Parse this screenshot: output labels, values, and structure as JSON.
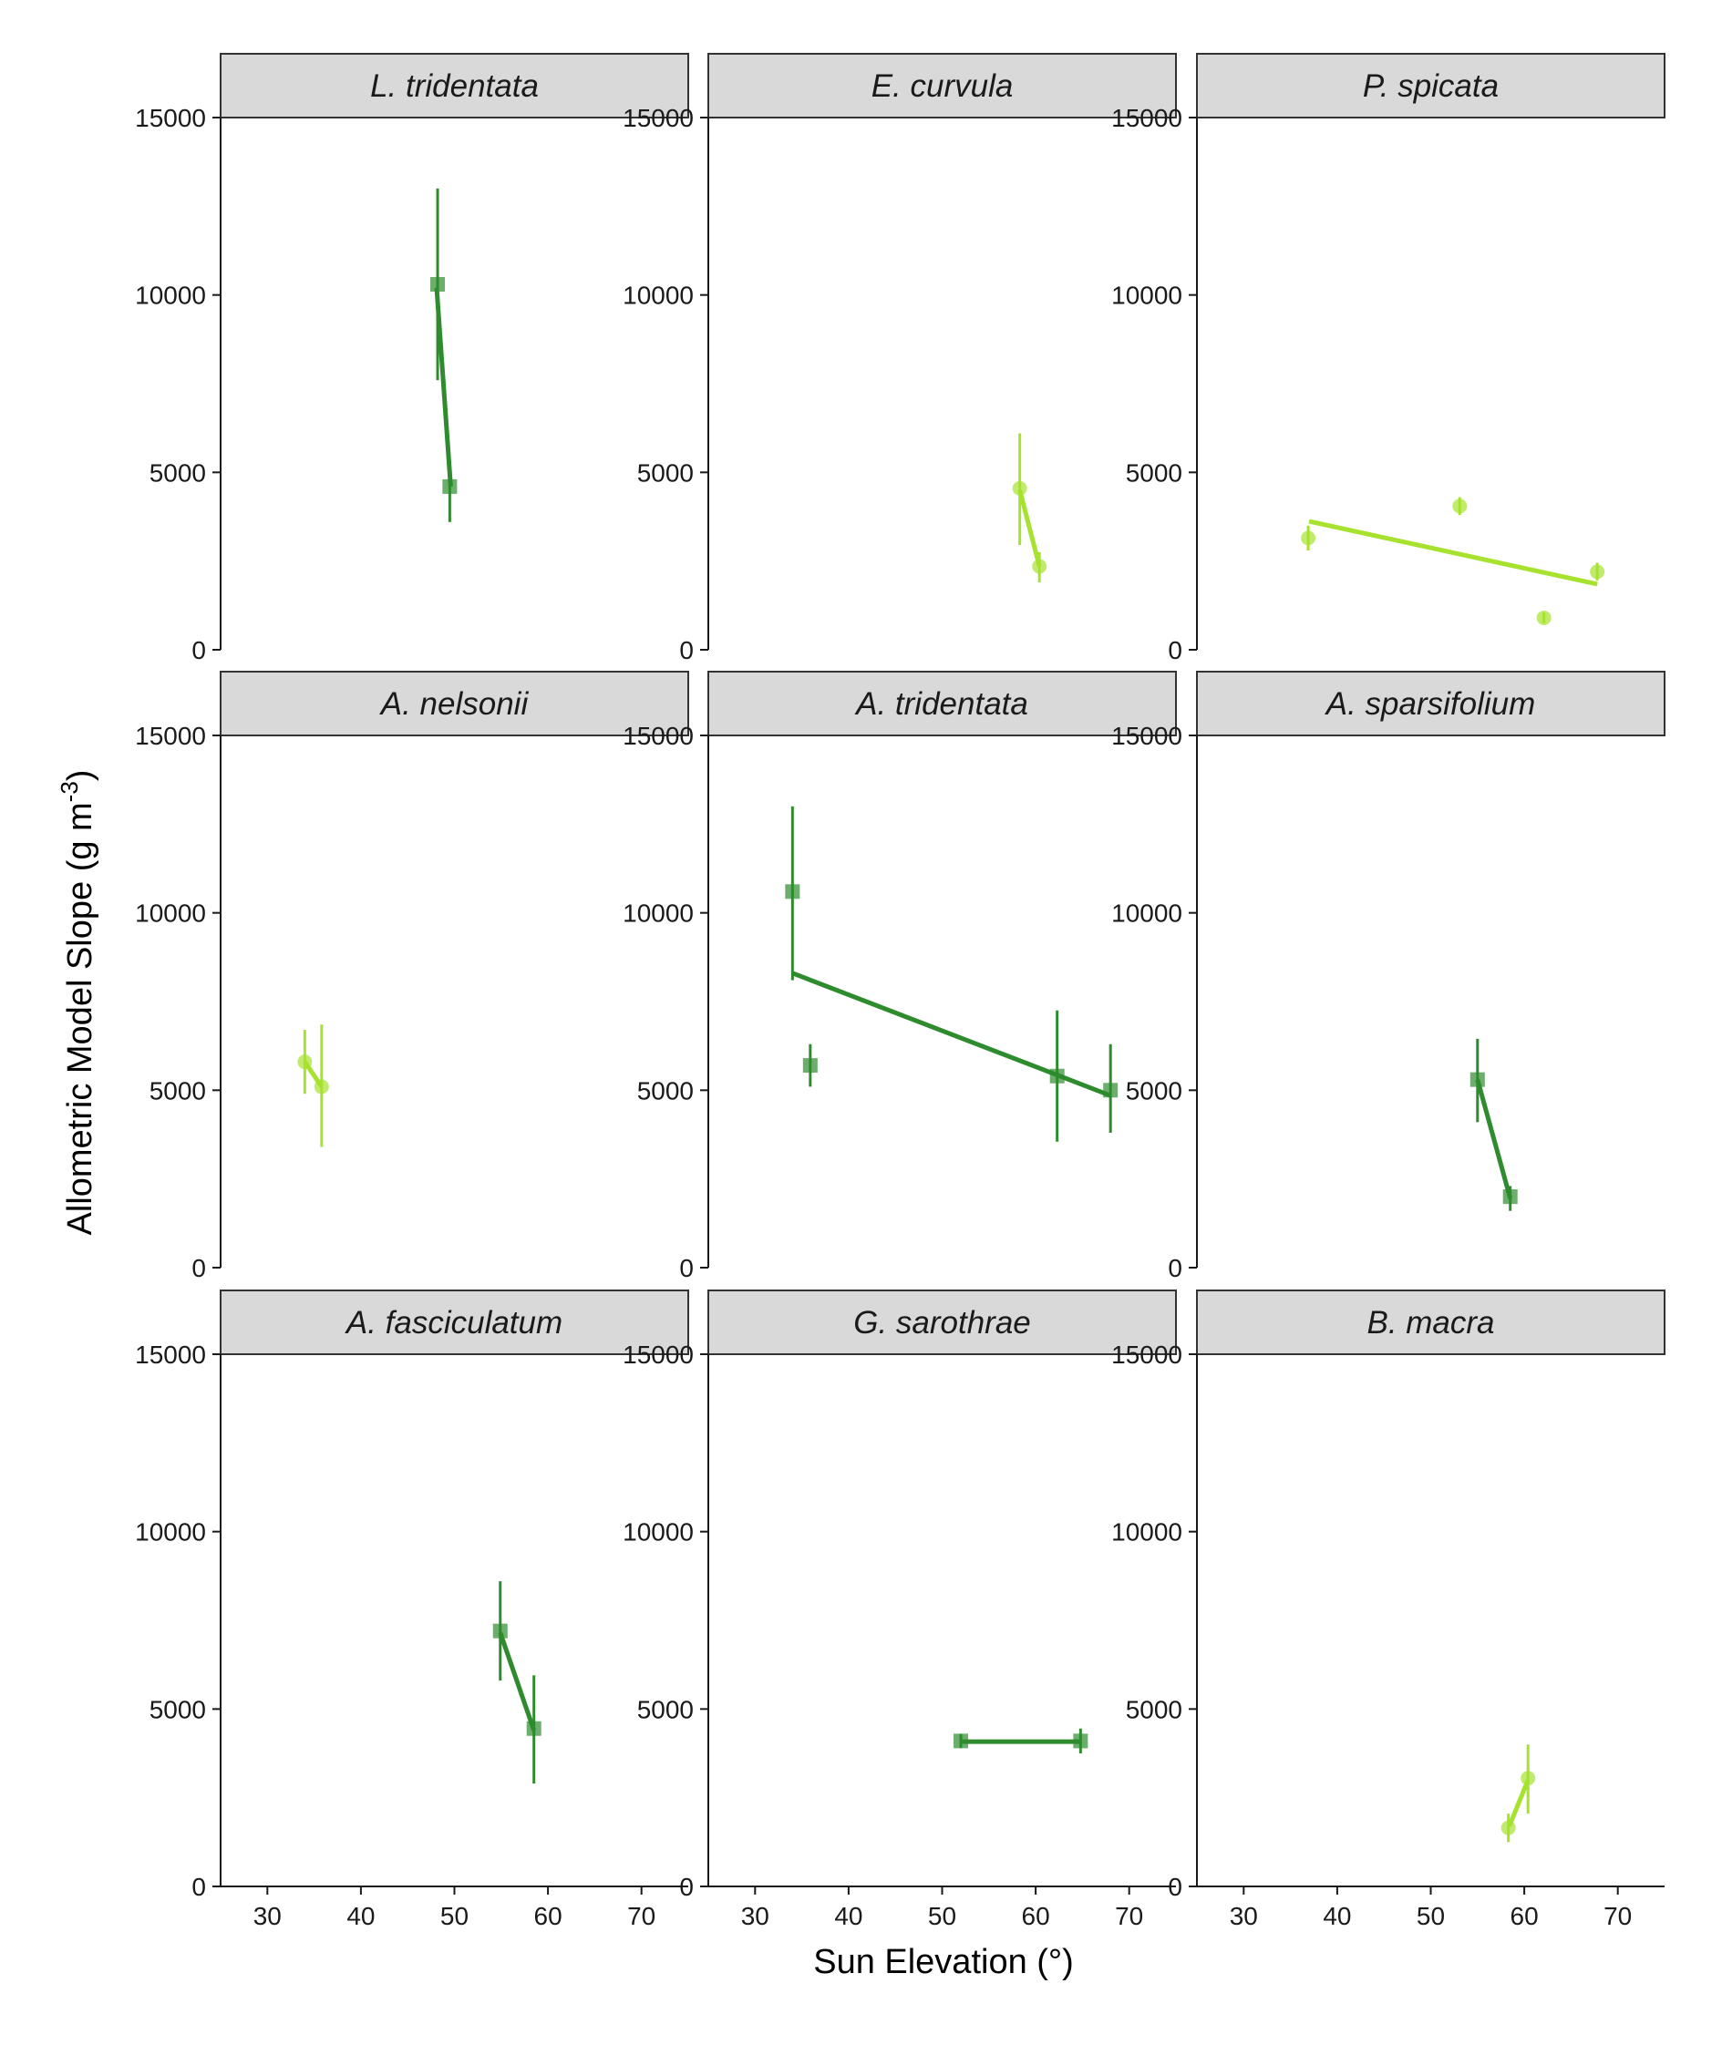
{
  "chart_data": {
    "type": "scatter",
    "xlabel": "Sun Elevation (°)",
    "ylabel": "Allometric Model Slope (g m",
    "ylabel_sup": "-3",
    "ylabel_end": ")",
    "xlim": [
      25,
      75
    ],
    "ylim": [
      0,
      15000
    ],
    "xticks": [
      30,
      40,
      50,
      60,
      70
    ],
    "yticks": [
      0,
      5000,
      10000,
      15000
    ],
    "grid": false,
    "colors": {
      "light_green": "#a6e22e",
      "dark_green": "#2e8b2e"
    },
    "panels": [
      {
        "title": "L. tridentata",
        "color": "dark_green",
        "marker": "square",
        "points": [
          {
            "x": 48.2,
            "y": 10300,
            "err": [
              7600,
              13000
            ]
          },
          {
            "x": 49.5,
            "y": 4600,
            "err": [
              3600,
              4700
            ]
          }
        ],
        "fit": [
          {
            "x": 48.1,
            "y": 10200
          },
          {
            "x": 49.6,
            "y": 4600
          }
        ]
      },
      {
        "title": "E. curvula",
        "color": "light_green",
        "marker": "circle",
        "points": [
          {
            "x": 58.3,
            "y": 4550,
            "err": [
              2950,
              6100
            ]
          },
          {
            "x": 60.4,
            "y": 2350,
            "err": [
              1900,
              2750
            ]
          }
        ],
        "fit": [
          {
            "x": 58.3,
            "y": 4500
          },
          {
            "x": 60.4,
            "y": 2350
          }
        ]
      },
      {
        "title": "P. spicata",
        "color": "light_green",
        "marker": "circle",
        "points": [
          {
            "x": 36.9,
            "y": 3150,
            "err": [
              2800,
              3500
            ]
          },
          {
            "x": 53.1,
            "y": 4050,
            "err": [
              3800,
              4300
            ]
          },
          {
            "x": 62.1,
            "y": 900,
            "err": [
              750,
              1050
            ]
          },
          {
            "x": 67.8,
            "y": 2200,
            "err": [
              1950,
              2450
            ]
          }
        ],
        "fit": [
          {
            "x": 37.0,
            "y": 3620
          },
          {
            "x": 67.8,
            "y": 1850
          }
        ]
      },
      {
        "title": "A. nelsonii",
        "color": "light_green",
        "marker": "circle",
        "points": [
          {
            "x": 34.0,
            "y": 5800,
            "err": [
              4900,
              6700
            ]
          },
          {
            "x": 35.8,
            "y": 5100,
            "err": [
              3400,
              6850
            ]
          }
        ],
        "fit": [
          {
            "x": 34.0,
            "y": 5800
          },
          {
            "x": 35.8,
            "y": 5100
          }
        ]
      },
      {
        "title": "A. tridentata",
        "color": "dark_green",
        "marker": "square",
        "points": [
          {
            "x": 34.0,
            "y": 10600,
            "err": [
              8100,
              13000
            ]
          },
          {
            "x": 35.9,
            "y": 5700,
            "err": [
              5100,
              6300
            ]
          },
          {
            "x": 62.3,
            "y": 5400,
            "err": [
              3550,
              7250
            ]
          },
          {
            "x": 68.0,
            "y": 5000,
            "err": [
              3800,
              6300
            ]
          }
        ],
        "fit": [
          {
            "x": 34.0,
            "y": 8300
          },
          {
            "x": 68.0,
            "y": 4850
          }
        ]
      },
      {
        "title": "A. sparsifolium",
        "color": "dark_green",
        "marker": "square",
        "points": [
          {
            "x": 55.0,
            "y": 5300,
            "err": [
              4100,
              6450
            ]
          },
          {
            "x": 58.5,
            "y": 2000,
            "err": [
              1600,
              2300
            ]
          }
        ],
        "fit": [
          {
            "x": 55.0,
            "y": 5300
          },
          {
            "x": 58.5,
            "y": 1950
          }
        ]
      },
      {
        "title": "A. fasciculatum",
        "color": "dark_green",
        "marker": "square",
        "points": [
          {
            "x": 54.9,
            "y": 7200,
            "err": [
              5800,
              8600
            ]
          },
          {
            "x": 58.5,
            "y": 4450,
            "err": [
              2900,
              5950
            ]
          }
        ],
        "fit": [
          {
            "x": 54.9,
            "y": 7150
          },
          {
            "x": 58.5,
            "y": 4400
          }
        ]
      },
      {
        "title": "G. sarothrae",
        "color": "dark_green",
        "marker": "square",
        "points": [
          {
            "x": 52.0,
            "y": 4100,
            "err": [
              3900,
              4300
            ]
          },
          {
            "x": 64.8,
            "y": 4100,
            "err": [
              3750,
              4450
            ]
          }
        ],
        "fit": [
          {
            "x": 52.0,
            "y": 4080
          },
          {
            "x": 64.8,
            "y": 4080
          }
        ]
      },
      {
        "title": "B. macra",
        "color": "light_green",
        "marker": "circle",
        "points": [
          {
            "x": 58.3,
            "y": 1650,
            "err": [
              1250,
              2050
            ]
          },
          {
            "x": 60.4,
            "y": 3050,
            "err": [
              2050,
              4000
            ]
          }
        ],
        "fit": [
          {
            "x": 58.4,
            "y": 1700
          },
          {
            "x": 60.4,
            "y": 3000
          }
        ]
      }
    ]
  }
}
